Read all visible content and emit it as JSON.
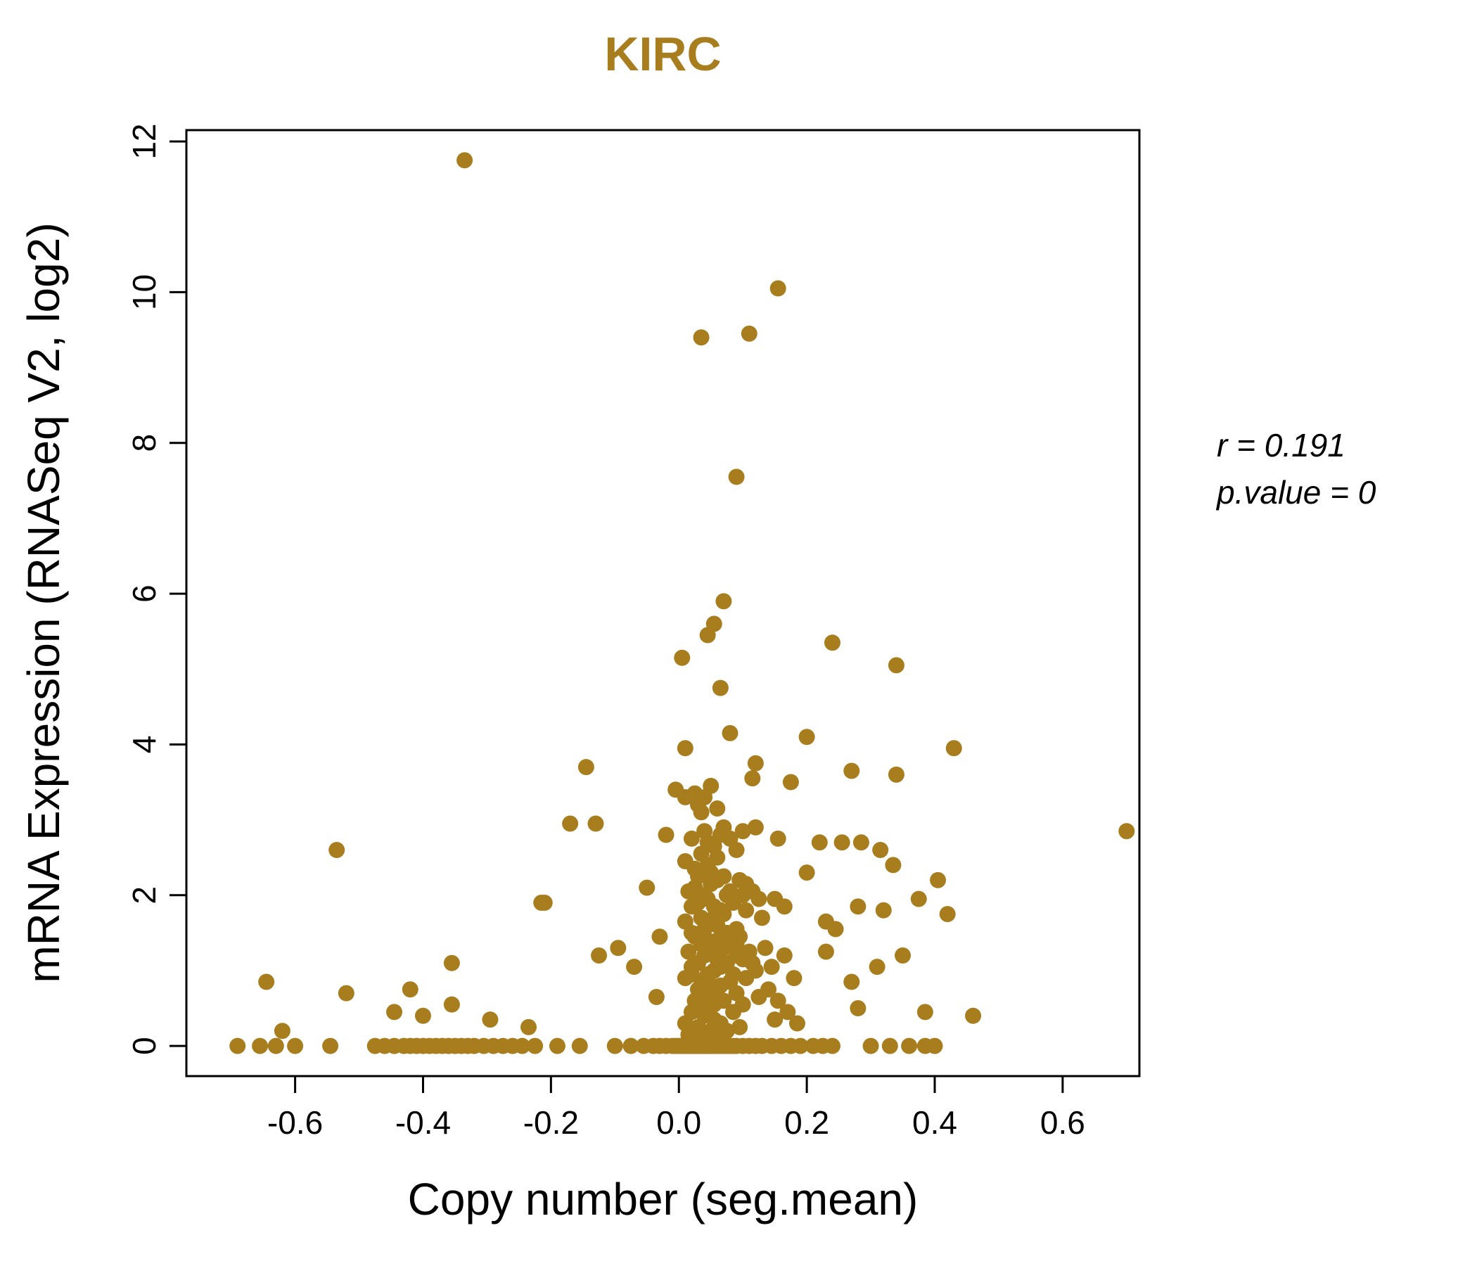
{
  "annotation": {
    "line1": "r = 0.191",
    "line2": "p.value = 0"
  },
  "chart_data": {
    "type": "scatter",
    "title": "KIRC",
    "xlabel": "Copy number (seg.mean)",
    "ylabel": "mRNA Expression (RNASeq V2, log2)",
    "xlim": [
      -0.77,
      0.72
    ],
    "ylim": [
      -0.4,
      12.15
    ],
    "x_ticks": [
      -0.6,
      -0.4,
      -0.2,
      0.0,
      0.2,
      0.4,
      0.6
    ],
    "x_tick_labels": [
      "-0.6",
      "-0.4",
      "-0.2",
      "0.0",
      "0.2",
      "0.4",
      "0.6"
    ],
    "y_ticks": [
      0,
      2,
      4,
      6,
      8,
      10,
      12
    ],
    "y_tick_labels": [
      "0",
      "2",
      "4",
      "6",
      "8",
      "10",
      "12"
    ],
    "grid": false,
    "legend": "none",
    "point_color": "#A87D1E",
    "title_color": "#A87D1E",
    "axis_color": "#000000",
    "stats": {
      "r": 0.191,
      "p_value": 0
    },
    "points": [
      [
        -0.335,
        11.75
      ],
      [
        0.155,
        10.05
      ],
      [
        0.035,
        9.4
      ],
      [
        0.11,
        9.45
      ],
      [
        0.09,
        7.55
      ],
      [
        0.07,
        5.9
      ],
      [
        0.055,
        5.6
      ],
      [
        0.045,
        5.45
      ],
      [
        0.24,
        5.35
      ],
      [
        0.005,
        5.15
      ],
      [
        0.34,
        5.05
      ],
      [
        0.065,
        4.75
      ],
      [
        0.08,
        4.15
      ],
      [
        0.2,
        4.1
      ],
      [
        0.01,
        3.95
      ],
      [
        0.43,
        3.95
      ],
      [
        -0.145,
        3.7
      ],
      [
        0.12,
        3.75
      ],
      [
        0.27,
        3.65
      ],
      [
        0.34,
        3.6
      ],
      [
        0.115,
        3.55
      ],
      [
        0.175,
        3.5
      ],
      [
        0.05,
        3.45
      ],
      [
        -0.005,
        3.4
      ],
      [
        0.025,
        3.35
      ],
      [
        0.04,
        3.3
      ],
      [
        0.01,
        3.3
      ],
      [
        0.03,
        3.2
      ],
      [
        0.06,
        3.15
      ],
      [
        0.035,
        3.1
      ],
      [
        -0.17,
        2.95
      ],
      [
        -0.13,
        2.95
      ],
      [
        0.7,
        2.85
      ],
      [
        0.12,
        2.9
      ],
      [
        0.1,
        2.85
      ],
      [
        0.04,
        2.85
      ],
      [
        -0.02,
        2.8
      ],
      [
        0.065,
        2.8
      ],
      [
        0.02,
        2.75
      ],
      [
        0.07,
        2.9
      ],
      [
        0.08,
        2.75
      ],
      [
        0.09,
        2.6
      ],
      [
        0.055,
        2.65
      ],
      [
        0.045,
        2.7
      ],
      [
        0.155,
        2.75
      ],
      [
        0.22,
        2.7
      ],
      [
        0.255,
        2.7
      ],
      [
        0.285,
        2.7
      ],
      [
        -0.535,
        2.6
      ],
      [
        0.315,
        2.6
      ],
      [
        0.035,
        2.55
      ],
      [
        0.06,
        2.5
      ],
      [
        0.01,
        2.45
      ],
      [
        0.335,
        2.4
      ],
      [
        0.045,
        2.4
      ],
      [
        0.2,
        2.3
      ],
      [
        0.03,
        2.25
      ],
      [
        0.405,
        2.2
      ],
      [
        0.05,
        2.15
      ],
      [
        -0.05,
        2.1
      ],
      [
        0.015,
        2.05
      ],
      [
        0.075,
        2.0
      ],
      [
        0.1,
        2.0
      ],
      [
        0.025,
        2.1
      ],
      [
        0.06,
        2.2
      ],
      [
        0.08,
        2.05
      ],
      [
        0.095,
        2.2
      ],
      [
        0.105,
        2.15
      ],
      [
        0.115,
        2.05
      ],
      [
        0.125,
        1.95
      ],
      [
        0.15,
        1.95
      ],
      [
        -0.21,
        1.9
      ],
      [
        0.165,
        1.85
      ],
      [
        0.28,
        1.85
      ],
      [
        0.42,
        1.75
      ],
      [
        0.035,
        1.7
      ],
      [
        0.23,
        1.65
      ],
      [
        0.06,
        1.6
      ],
      [
        0.09,
        1.55
      ],
      [
        0.02,
        1.5
      ],
      [
        0.045,
        1.95
      ],
      [
        0.055,
        1.85
      ],
      [
        0.07,
        1.75
      ],
      [
        0.01,
        1.65
      ],
      [
        0.04,
        1.55
      ],
      [
        0.085,
        1.9
      ],
      [
        0.105,
        1.8
      ],
      [
        0.13,
        1.7
      ],
      [
        0.375,
        1.95
      ],
      [
        0.32,
        1.8
      ],
      [
        0.245,
        1.55
      ],
      [
        -0.03,
        1.45
      ],
      [
        0.045,
        1.4
      ],
      [
        -0.095,
        1.3
      ],
      [
        0.07,
        1.3
      ],
      [
        0.23,
        1.25
      ],
      [
        -0.125,
        1.2
      ],
      [
        0.35,
        1.2
      ],
      [
        0.1,
        1.15
      ],
      [
        -0.355,
        1.1
      ],
      [
        0.31,
        1.05
      ],
      [
        -0.07,
        1.05
      ],
      [
        0.12,
        1.0
      ],
      [
        0.025,
        1.45
      ],
      [
        0.035,
        1.35
      ],
      [
        0.05,
        1.25
      ],
      [
        0.06,
        1.15
      ],
      [
        0.075,
        1.1
      ],
      [
        0.02,
        1.05
      ],
      [
        0.09,
        1.35
      ],
      [
        0.11,
        1.25
      ],
      [
        0.145,
        1.05
      ],
      [
        0.165,
        1.2
      ],
      [
        0.02,
        0.95
      ],
      [
        -0.645,
        0.85
      ],
      [
        0.18,
        0.9
      ],
      [
        0.04,
        0.85
      ],
      [
        0.065,
        0.8
      ],
      [
        0.14,
        0.75
      ],
      [
        -0.52,
        0.7
      ],
      [
        -0.42,
        0.75
      ],
      [
        0.09,
        0.7
      ],
      [
        -0.035,
        0.65
      ],
      [
        0.025,
        0.6
      ],
      [
        -0.355,
        0.55
      ],
      [
        0.055,
        0.55
      ],
      [
        0.01,
        0.9
      ],
      [
        0.03,
        0.75
      ],
      [
        0.05,
        0.65
      ],
      [
        0.07,
        0.6
      ],
      [
        0.045,
        0.95
      ],
      [
        0.08,
        0.85
      ],
      [
        0.1,
        0.55
      ],
      [
        0.155,
        0.6
      ],
      [
        0.27,
        0.85
      ],
      [
        0.28,
        0.5
      ],
      [
        0.385,
        0.45
      ],
      [
        -0.445,
        0.45
      ],
      [
        -0.4,
        0.4
      ],
      [
        0.46,
        0.4
      ],
      [
        -0.295,
        0.35
      ],
      [
        0.15,
        0.35
      ],
      [
        0.01,
        0.3
      ],
      [
        -0.235,
        0.25
      ],
      [
        -0.62,
        0.2
      ],
      [
        0.075,
        0.2
      ],
      [
        0.035,
        0.15
      ],
      [
        0.02,
        0.45
      ],
      [
        0.04,
        0.4
      ],
      [
        0.055,
        0.35
      ],
      [
        0.065,
        0.3
      ],
      [
        0.03,
        0.25
      ],
      [
        0.05,
        0.2
      ],
      [
        0.015,
        0.15
      ],
      [
        0.085,
        0.45
      ],
      [
        0.095,
        0.25
      ],
      [
        0.06,
        0.1
      ],
      [
        0.025,
        0.1
      ],
      [
        0.045,
        0.05
      ],
      [
        0.17,
        0.45
      ],
      [
        0.185,
        0.3
      ],
      [
        0.03,
        0.5
      ],
      [
        0.04,
        0.6
      ],
      [
        0.05,
        0.7
      ],
      [
        0.06,
        0.75
      ],
      [
        0.035,
        0.8
      ],
      [
        0.045,
        0.9
      ],
      [
        0.055,
        1.0
      ],
      [
        0.065,
        1.05
      ],
      [
        0.03,
        1.1
      ],
      [
        0.04,
        1.2
      ],
      [
        0.05,
        1.3
      ],
      [
        0.06,
        1.4
      ],
      [
        0.035,
        1.5
      ],
      [
        0.045,
        1.6
      ],
      [
        0.055,
        1.7
      ],
      [
        0.065,
        1.8
      ],
      [
        0.03,
        1.9
      ],
      [
        0.04,
        2.0
      ],
      [
        0.05,
        2.3
      ],
      [
        0.025,
        2.35
      ],
      [
        0.07,
        2.25
      ],
      [
        0.08,
        1.45
      ],
      [
        0.09,
        1.2
      ],
      [
        0.015,
        1.25
      ],
      [
        0.02,
        1.85
      ],
      [
        0.075,
        1.5
      ],
      [
        0.085,
        0.95
      ],
      [
        0.095,
        1.45
      ],
      [
        0.105,
        0.9
      ],
      [
        0.115,
        1.1
      ],
      [
        0.125,
        0.65
      ],
      [
        0.135,
        1.3
      ],
      [
        -0.69,
        0
      ],
      [
        -0.655,
        0
      ],
      [
        -0.63,
        0
      ],
      [
        -0.6,
        0
      ],
      [
        -0.545,
        0
      ],
      [
        -0.475,
        0
      ],
      [
        -0.46,
        0
      ],
      [
        -0.445,
        0
      ],
      [
        -0.43,
        0
      ],
      [
        -0.42,
        0
      ],
      [
        -0.41,
        0
      ],
      [
        -0.4,
        0
      ],
      [
        -0.39,
        0
      ],
      [
        -0.38,
        0
      ],
      [
        -0.37,
        0
      ],
      [
        -0.36,
        0
      ],
      [
        -0.35,
        0
      ],
      [
        -0.34,
        0
      ],
      [
        -0.33,
        0
      ],
      [
        -0.32,
        0
      ],
      [
        -0.305,
        0
      ],
      [
        -0.29,
        0
      ],
      [
        -0.275,
        0
      ],
      [
        -0.26,
        0
      ],
      [
        -0.245,
        0
      ],
      [
        -0.225,
        0
      ],
      [
        -0.19,
        0
      ],
      [
        -0.155,
        0
      ],
      [
        -0.1,
        0
      ],
      [
        -0.075,
        0
      ],
      [
        -0.055,
        0
      ],
      [
        -0.04,
        0
      ],
      [
        -0.03,
        0
      ],
      [
        -0.02,
        0
      ],
      [
        -0.01,
        0
      ],
      [
        -0.005,
        0
      ],
      [
        0,
        0
      ],
      [
        0.003,
        0
      ],
      [
        0.006,
        0
      ],
      [
        0.009,
        0
      ],
      [
        0.012,
        0
      ],
      [
        0.015,
        0
      ],
      [
        0.018,
        0
      ],
      [
        0.021,
        0
      ],
      [
        0.024,
        0
      ],
      [
        0.027,
        0
      ],
      [
        0.03,
        0
      ],
      [
        0.033,
        0
      ],
      [
        0.036,
        0
      ],
      [
        0.039,
        0
      ],
      [
        0.042,
        0
      ],
      [
        0.045,
        0
      ],
      [
        0.048,
        0
      ],
      [
        0.051,
        0
      ],
      [
        0.055,
        0
      ],
      [
        0.06,
        0
      ],
      [
        0.065,
        0
      ],
      [
        0.07,
        0
      ],
      [
        0.075,
        0
      ],
      [
        0.08,
        0
      ],
      [
        0.085,
        0
      ],
      [
        0.09,
        0
      ],
      [
        0.1,
        0
      ],
      [
        0.11,
        0
      ],
      [
        0.12,
        0
      ],
      [
        0.13,
        0
      ],
      [
        0.145,
        0
      ],
      [
        0.16,
        0
      ],
      [
        0.175,
        0
      ],
      [
        0.19,
        0
      ],
      [
        0.21,
        0
      ],
      [
        0.225,
        0
      ],
      [
        0.24,
        0
      ],
      [
        0.3,
        0
      ],
      [
        0.33,
        0
      ],
      [
        0.36,
        0
      ],
      [
        0.385,
        0
      ],
      [
        0.4,
        0
      ],
      [
        -0.215,
        1.9
      ]
    ]
  }
}
